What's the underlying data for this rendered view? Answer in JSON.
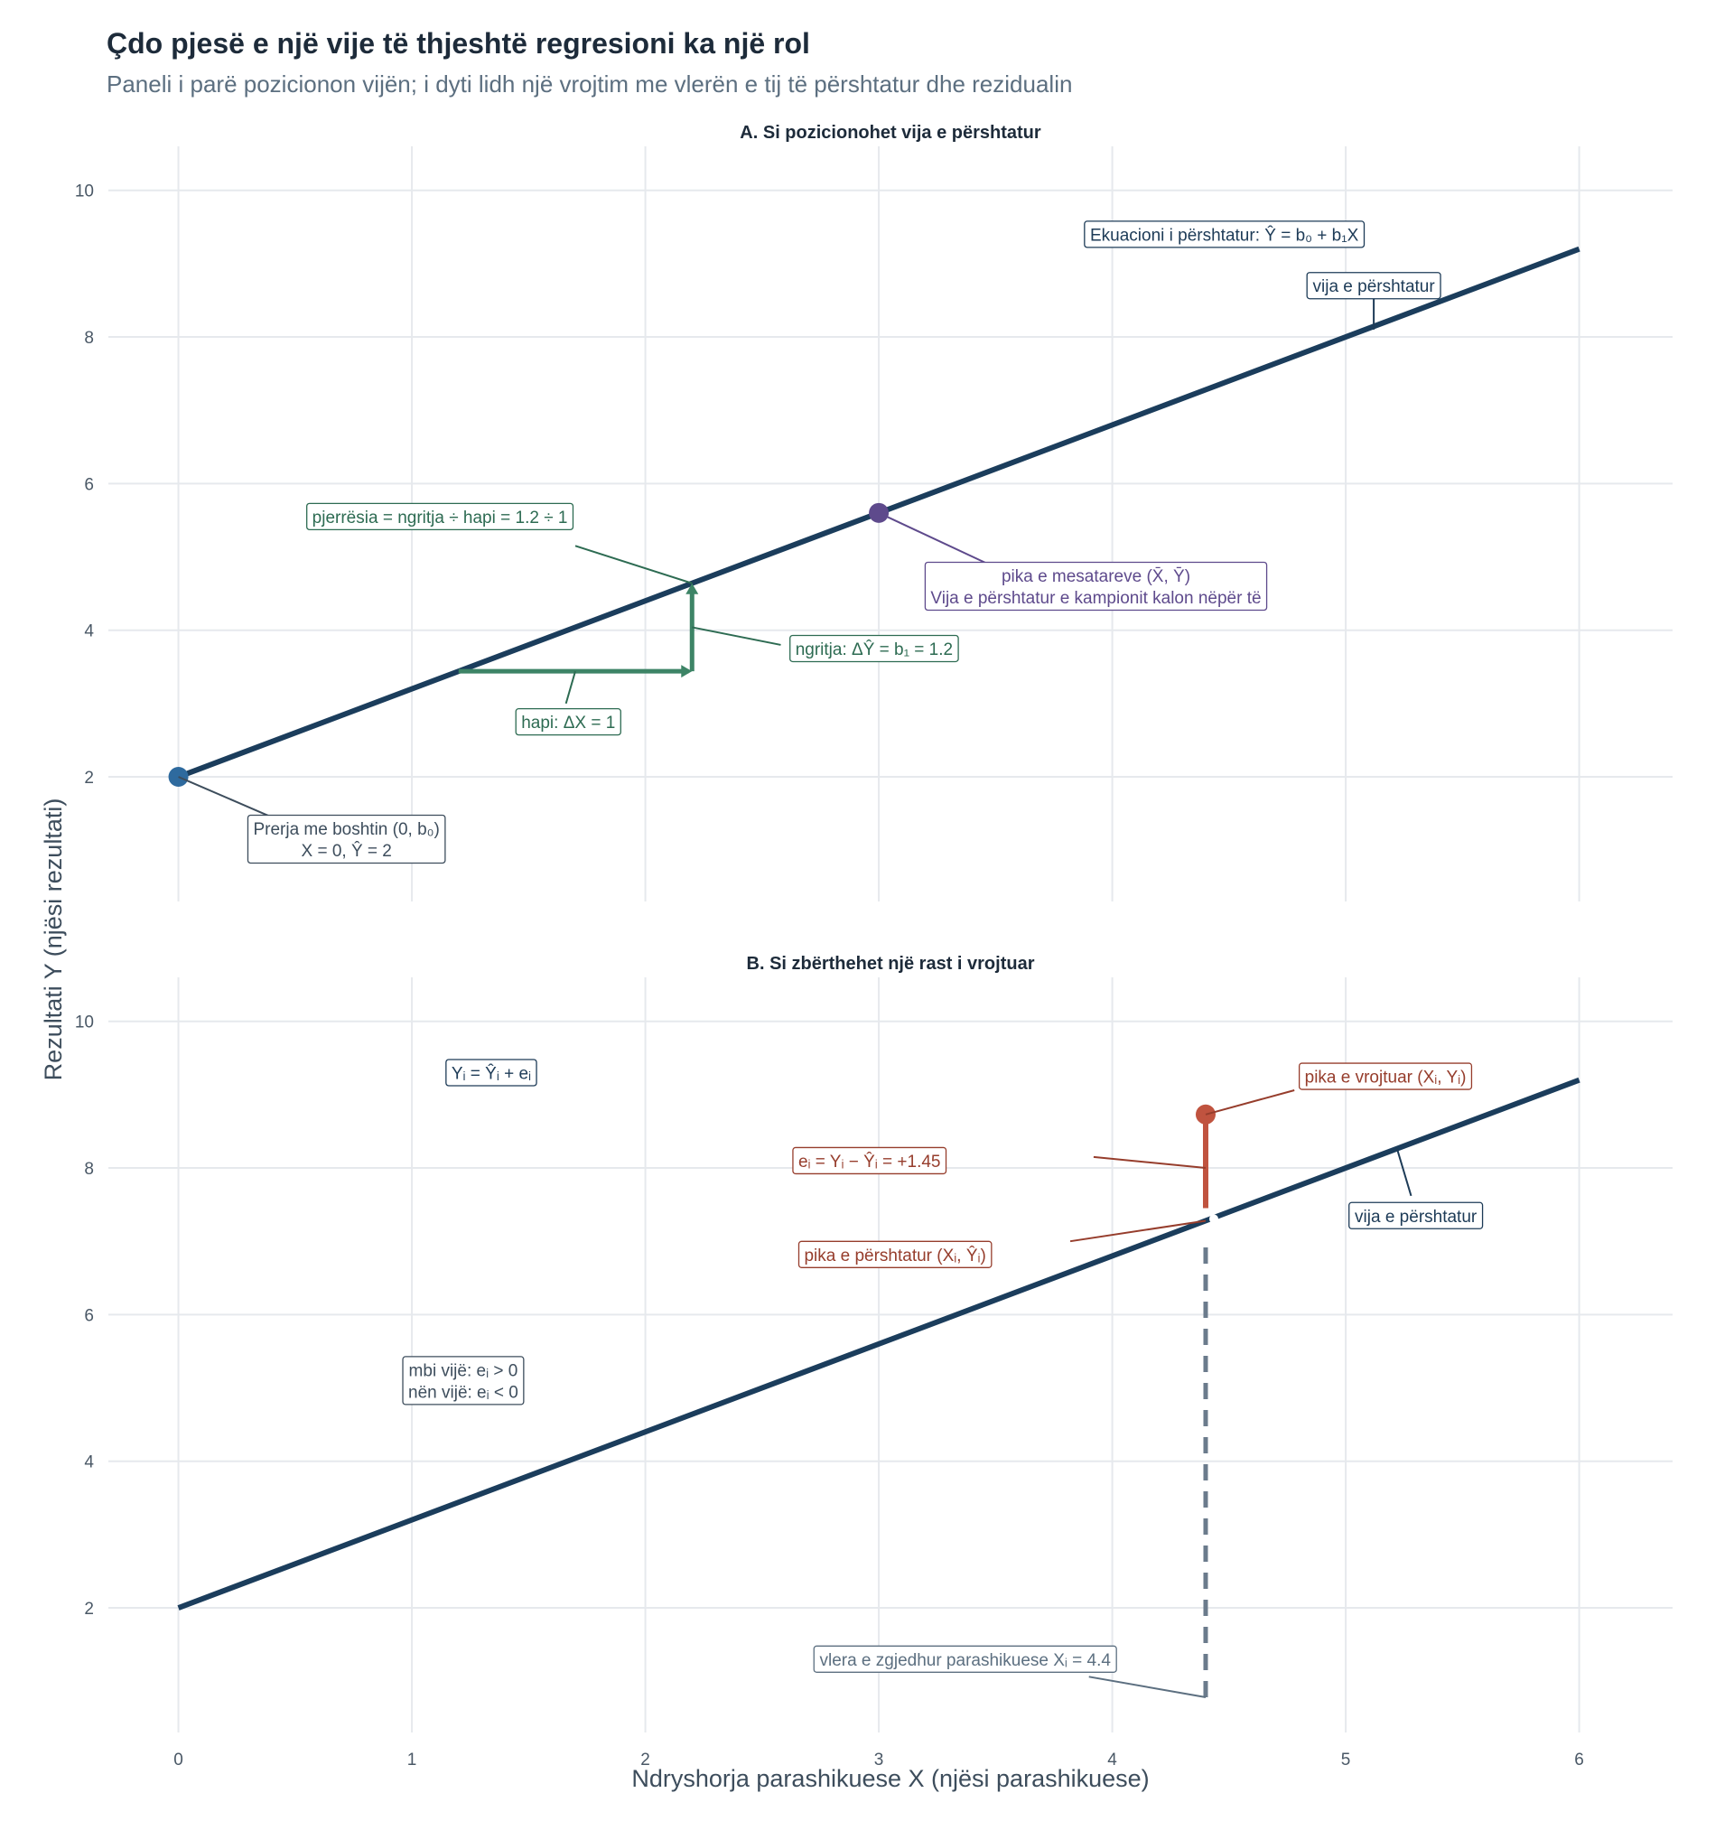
{
  "title": "Çdo pjesë e një vije të thjeshtë regresioni ka një rol",
  "subtitle": "Paneli i parë pozicionon vijën; i dyti lidh një vrojtim me vlerën e tij të përshtatur dhe rezidualin",
  "chart_data": {
    "type": "line",
    "xlabel": "Ndryshorja parashikuese X (njësi parashikuese)",
    "ylabel": "Rezultati Y (njësi rezultati)",
    "x_ticks": [
      0,
      1,
      2,
      3,
      4,
      5,
      6
    ],
    "y_ticks": [
      2,
      4,
      6,
      8,
      10
    ],
    "xlim": [
      -0.3,
      6.4
    ],
    "grid": true,
    "fitted_line": {
      "intercept": 2,
      "slope": 1.2,
      "x": [
        0,
        6
      ],
      "y": [
        2,
        9.2
      ]
    },
    "panels": [
      {
        "id": "A",
        "title": "A. Si pozicionohet vija e përshtatur",
        "ylim": [
          0.3,
          10.6
        ],
        "points": [
          {
            "name": "intercept",
            "x": 0,
            "y": 2,
            "color": "#2e6a9e"
          },
          {
            "name": "mean",
            "x": 3,
            "y": 5.6,
            "color": "#5e4a8c"
          }
        ],
        "slope_triangle": {
          "x0": 1.2,
          "x1": 2.2,
          "y0": 3.44,
          "y1": 4.64,
          "color": "#3d8466"
        },
        "labels": [
          {
            "id": "equation",
            "lines": [
              "Ekuacioni i përshtatur: Ŷ = b₀ + b₁X"
            ],
            "x": 4.48,
            "y": 9.4,
            "color": "#1d3b57"
          },
          {
            "id": "fitted-line",
            "lines": [
              "vija e përshtatur"
            ],
            "x": 5.12,
            "y": 8.7,
            "color": "#1d3b57",
            "leader": [
              5.12,
              8.1
            ]
          },
          {
            "id": "slope",
            "lines": [
              "pjerrësia = ngritja ÷ hapi = 1.2 ÷ 1"
            ],
            "x": 1.12,
            "y": 5.55,
            "color": "#2d6b52",
            "leader": [
              2.2,
              4.64
            ],
            "leader_start": [
              1.7,
              5.15
            ]
          },
          {
            "id": "rise",
            "lines": [
              "ngritja: ΔŶ = b₁ = 1.2"
            ],
            "x": 2.98,
            "y": 3.75,
            "color": "#2d6b52",
            "leader": [
              2.2,
              4.04
            ],
            "leader_start": [
              2.58,
              3.8
            ]
          },
          {
            "id": "run",
            "lines": [
              "hapi: ΔX = 1"
            ],
            "x": 1.67,
            "y": 2.75,
            "color": "#2d6b52",
            "leader": [
              1.7,
              3.44
            ],
            "leader_start": [
              1.66,
              3.0
            ]
          },
          {
            "id": "mean",
            "lines": [
              "pika e mesatareve (X̄, Ȳ)",
              "Vija e përshtatur e kampionit kalon nëpër të"
            ],
            "x": 3.93,
            "y": 4.6,
            "color": "#5e4a8c",
            "leader": [
              3,
              5.6
            ],
            "leader_start": [
              3.47,
              4.9
            ]
          },
          {
            "id": "intercept",
            "lines": [
              "Prerja me boshtin (0, b₀)",
              "X = 0, Ŷ = 2"
            ],
            "x": 0.72,
            "y": 1.15,
            "color": "#3d4d5c",
            "leader": [
              0,
              2
            ],
            "leader_start": [
              0.4,
              1.45
            ]
          }
        ]
      },
      {
        "id": "B",
        "title": "B. Si zbërthehet një rast i vrojtuar",
        "ylim": [
          0.3,
          10.6
        ],
        "observation": {
          "x": 4.4,
          "y": 8.73,
          "fitted": 7.28,
          "residual": 1.45,
          "color": "#c0533f"
        },
        "labels": [
          {
            "id": "identity",
            "lines": [
              "Yᵢ = Ŷᵢ + eᵢ"
            ],
            "x": 1.34,
            "y": 9.3,
            "color": "#1d3b57"
          },
          {
            "id": "observed",
            "lines": [
              "pika e vrojtuar (Xᵢ, Yᵢ)"
            ],
            "x": 5.17,
            "y": 9.25,
            "color": "#963d2c",
            "leader": [
              4.4,
              8.73
            ],
            "leader_start": [
              4.78,
              9.06
            ]
          },
          {
            "id": "residual",
            "lines": [
              "eᵢ = Yᵢ − Ŷᵢ = +1.45"
            ],
            "x": 2.96,
            "y": 8.1,
            "color": "#963d2c",
            "leader": [
              4.4,
              8.0
            ],
            "leader_start": [
              3.92,
              8.15
            ]
          },
          {
            "id": "fitted-point",
            "lines": [
              "pika e përshtatur (Xᵢ, Ŷᵢ)"
            ],
            "x": 3.07,
            "y": 6.82,
            "color": "#963d2c",
            "leader": [
              4.4,
              7.28
            ],
            "leader_start": [
              3.82,
              7.0
            ]
          },
          {
            "id": "fitted-line",
            "lines": [
              "vija e përshtatur"
            ],
            "x": 5.3,
            "y": 7.35,
            "color": "#1d3b57",
            "leader": [
              5.22,
              8.26
            ],
            "leader_start": [
              5.28,
              7.62
            ]
          },
          {
            "id": "sign",
            "lines": [
              "mbi vijë: eᵢ > 0",
              "nën vijë: eᵢ < 0"
            ],
            "x": 1.22,
            "y": 5.1,
            "color": "#3d4d5c"
          },
          {
            "id": "predictor",
            "lines": [
              "vlera e zgjedhur parashikuese Xᵢ = 4.4"
            ],
            "x": 3.37,
            "y": 1.3,
            "color": "#5c6f80",
            "leader": [
              4.4,
              0.78
            ],
            "leader_start": [
              3.9,
              1.06
            ]
          }
        ]
      }
    ]
  }
}
